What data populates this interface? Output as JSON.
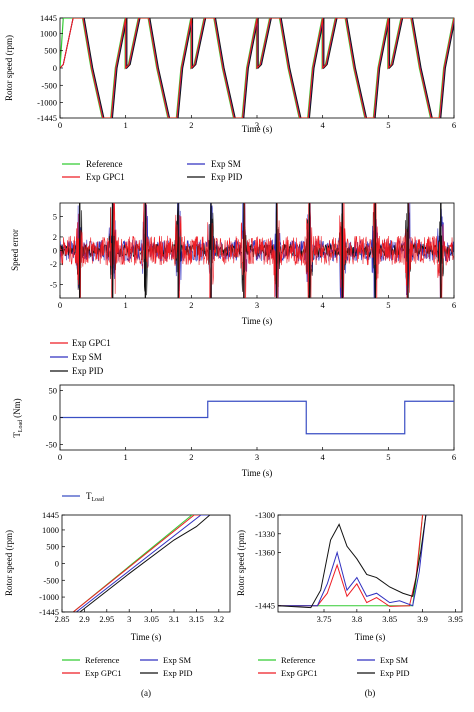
{
  "colors": {
    "reference": "#33cc33",
    "gpc1": "#ee1c24",
    "sm": "#3030c0",
    "pid": "#111111",
    "load": "#3a4fc4"
  },
  "chart_data": [
    {
      "id": "speed-tracking",
      "type": "line",
      "xlabel": "Time (s)",
      "ylabel": "Rotor speed (rpm)",
      "xlim": [
        0,
        6
      ],
      "ylim": [
        -1445,
        1445
      ],
      "x_ticks": [
        "0",
        "1",
        "2",
        "3",
        "4",
        "5",
        "6"
      ],
      "y_ticks": [
        "1445",
        "1000",
        "500",
        "0",
        "-500",
        "-1000",
        "-1445"
      ],
      "period_s": 1.0,
      "waveform_points": {
        "x": [
          0,
          0.05,
          0.2,
          0.35,
          0.48,
          0.65,
          0.78,
          0.85,
          1.0
        ],
        "y": [
          0,
          100,
          1445,
          1445,
          0,
          -1445,
          -1445,
          0,
          1445
        ]
      },
      "start_segment": {
        "x": [
          0,
          0.05,
          0.2
        ],
        "y": [
          0,
          0,
          1445
        ]
      },
      "grid": false,
      "legend": {
        "position": "below",
        "entries": [
          "Reference",
          "Exp GPC1",
          "Exp SM",
          "Exp PID"
        ]
      }
    },
    {
      "id": "speed-error",
      "type": "line",
      "xlabel": "Time (s)",
      "ylabel": "Speed error",
      "xlim": [
        0,
        6
      ],
      "ylim": [
        -7,
        7
      ],
      "x_ticks": [
        "0",
        "1",
        "2",
        "3",
        "4",
        "5",
        "6"
      ],
      "y_ticks": [
        "5",
        "2",
        "0",
        "-2",
        "-5"
      ],
      "y_tick_values": [
        5,
        2,
        0,
        -2,
        -5
      ],
      "transition_times_s": [
        0.3,
        0.8,
        1.3,
        1.8,
        2.3,
        2.8,
        3.3,
        3.8,
        4.3,
        4.8,
        5.3,
        5.8
      ],
      "grid": false,
      "legend": {
        "position": "below",
        "entries": [
          "Exp GPC1",
          "Exp SM",
          "Exp PID"
        ]
      }
    },
    {
      "id": "load-torque",
      "type": "line",
      "xlabel": "Time (s)",
      "ylabel_main": "T",
      "ylabel_sub": "Load",
      "ylabel_unit": "(Nm)",
      "xlim": [
        0,
        6
      ],
      "ylim": [
        -60,
        60
      ],
      "x_ticks": [
        "0",
        "1",
        "2",
        "3",
        "4",
        "5",
        "6"
      ],
      "y_ticks": [
        "50",
        "0",
        "-50"
      ],
      "y_tick_values": [
        50,
        0,
        -50
      ],
      "series": [
        {
          "name": "T_Load",
          "x": [
            0,
            2.25,
            2.25,
            3.75,
            3.75,
            5.25,
            5.25,
            6
          ],
          "y": [
            0,
            0,
            30,
            30,
            -30,
            -30,
            30,
            30
          ]
        }
      ],
      "legend": {
        "position": "below",
        "entry_main": "T",
        "entry_sub": "Load"
      }
    },
    {
      "id": "zoom-a",
      "type": "line",
      "caption": "(a)",
      "xlabel": "Time (s)",
      "ylabel": "Rotor speed (rpm)",
      "xlim": [
        2.85,
        3.225
      ],
      "ylim": [
        -1445,
        1445
      ],
      "x_ticks": [
        "2.85",
        "2.9",
        "2.95",
        "3",
        "3.05",
        "3.1",
        "3.15",
        "3.2"
      ],
      "x_tick_values": [
        2.85,
        2.9,
        2.95,
        3.0,
        3.05,
        3.1,
        3.15,
        3.2
      ],
      "y_ticks": [
        "1445",
        "1000",
        "500",
        "0",
        "-500",
        "-1000",
        "-1445"
      ],
      "y_tick_values": [
        1445,
        1000,
        500,
        0,
        -500,
        -1000,
        -1445
      ],
      "series": [
        {
          "name": "Reference",
          "x": [
            2.85,
            2.875,
            3.14,
            3.225
          ],
          "y": [
            -1445,
            -1445,
            1445,
            1445
          ]
        },
        {
          "name": "Exp GPC1",
          "x": [
            2.85,
            2.875,
            3.145,
            3.225
          ],
          "y": [
            -1445,
            -1445,
            1445,
            1445
          ]
        },
        {
          "name": "Exp SM",
          "x": [
            2.85,
            2.882,
            3.16,
            3.225
          ],
          "y": [
            -1445,
            -1445,
            1445,
            1445
          ]
        },
        {
          "name": "Exp PID",
          "x": [
            2.85,
            2.89,
            3.0,
            3.1,
            3.15,
            3.18,
            3.225
          ],
          "y": [
            -1445,
            -1445,
            -300,
            700,
            1100,
            1445,
            1445
          ]
        }
      ],
      "legend": {
        "position": "below",
        "entries": [
          "Reference",
          "Exp GPC1",
          "Exp SM",
          "Exp PID"
        ]
      }
    },
    {
      "id": "zoom-b",
      "type": "line",
      "caption": "(b)",
      "xlabel": "Time (s)",
      "ylabel": "Rotor speed (rpm)",
      "xlim": [
        3.68,
        3.96
      ],
      "ylim": [
        -1455,
        -1300
      ],
      "x_ticks": [
        "3.75",
        "3.8",
        "3.85",
        "3.9",
        "3.95"
      ],
      "x_tick_values": [
        3.75,
        3.8,
        3.85,
        3.9,
        3.95
      ],
      "y_ticks": [
        "-1300",
        "-1330",
        "-1360",
        "-1445"
      ],
      "y_tick_values": [
        -1300,
        -1330,
        -1360,
        -1445
      ],
      "series": [
        {
          "name": "Reference",
          "x": [
            3.68,
            3.885,
            3.893,
            3.9
          ],
          "y": [
            -1445,
            -1445,
            -1380,
            -1300
          ]
        },
        {
          "name": "Exp GPC1",
          "x": [
            3.68,
            3.74,
            3.755,
            3.77,
            3.785,
            3.8,
            3.815,
            3.83,
            3.85,
            3.88,
            3.89,
            3.9
          ],
          "y": [
            -1445,
            -1445,
            -1425,
            -1380,
            -1430,
            -1410,
            -1440,
            -1432,
            -1446,
            -1445,
            -1400,
            -1300
          ]
        },
        {
          "name": "Exp SM",
          "x": [
            3.68,
            3.74,
            3.755,
            3.77,
            3.785,
            3.8,
            3.815,
            3.83,
            3.85,
            3.865,
            3.885,
            3.895,
            3.905
          ],
          "y": [
            -1445,
            -1445,
            -1410,
            -1360,
            -1420,
            -1400,
            -1430,
            -1425,
            -1440,
            -1437,
            -1445,
            -1390,
            -1300
          ]
        },
        {
          "name": "Exp PID",
          "x": [
            3.68,
            3.73,
            3.745,
            3.76,
            3.773,
            3.785,
            3.8,
            3.815,
            3.83,
            3.85,
            3.87,
            3.885,
            3.897,
            3.905
          ],
          "y": [
            -1445,
            -1448,
            -1420,
            -1340,
            -1315,
            -1350,
            -1370,
            -1395,
            -1400,
            -1415,
            -1425,
            -1430,
            -1360,
            -1300
          ]
        }
      ],
      "legend": {
        "position": "below",
        "entries": [
          "Reference",
          "Exp SM",
          "Exp GPC1",
          "Exp PID"
        ]
      }
    }
  ]
}
